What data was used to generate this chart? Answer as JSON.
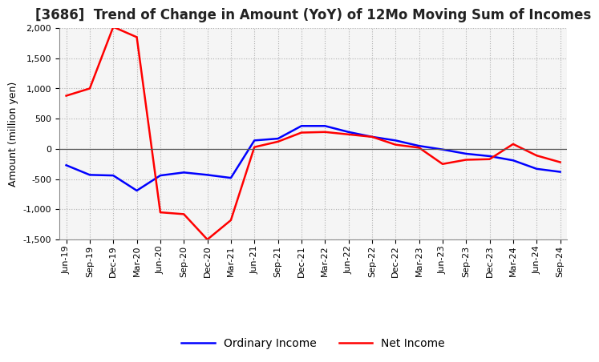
{
  "title": "[3686]  Trend of Change in Amount (YoY) of 12Mo Moving Sum of Incomes",
  "ylabel": "Amount (million yen)",
  "x_labels": [
    "Jun-19",
    "Sep-19",
    "Dec-19",
    "Mar-20",
    "Jun-20",
    "Sep-20",
    "Dec-20",
    "Mar-21",
    "Jun-21",
    "Sep-21",
    "Dec-21",
    "Mar-22",
    "Jun-22",
    "Sep-22",
    "Dec-22",
    "Mar-23",
    "Jun-23",
    "Sep-23",
    "Dec-23",
    "Mar-24",
    "Jun-24",
    "Sep-24"
  ],
  "ordinary_income": [
    -270,
    -430,
    -440,
    -690,
    -440,
    -390,
    -430,
    -480,
    140,
    170,
    380,
    380,
    280,
    200,
    140,
    50,
    -10,
    -80,
    -120,
    -190,
    -330,
    -380
  ],
  "net_income": [
    880,
    1000,
    2020,
    1850,
    -1050,
    -1080,
    -1500,
    -1180,
    30,
    120,
    270,
    280,
    240,
    200,
    70,
    20,
    -250,
    -180,
    -170,
    80,
    -110,
    -220
  ],
  "ylim": [
    -1500,
    2000
  ],
  "yticks": [
    -1500,
    -1000,
    -500,
    0,
    500,
    1000,
    1500,
    2000
  ],
  "ordinary_color": "#0000ff",
  "net_color": "#ff0000",
  "background_color": "#ffffff",
  "grid_color": "#b0b0b0",
  "title_fontsize": 12,
  "axis_label_fontsize": 9,
  "tick_fontsize": 8
}
